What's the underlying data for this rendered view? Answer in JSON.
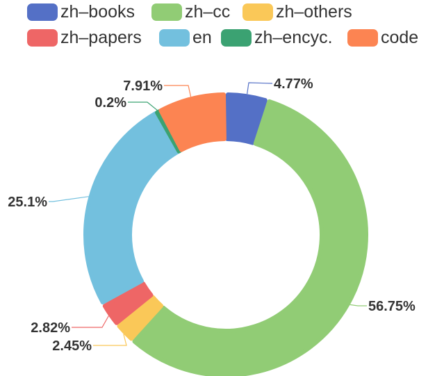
{
  "chart_data": {
    "type": "pie",
    "variant": "donut",
    "title": "",
    "legend_placement": "top",
    "categories": [
      "zh-books",
      "zh-cc",
      "zh-others",
      "zh-papers",
      "en",
      "zh-encyc.",
      "code"
    ],
    "legend_labels": [
      "zh–books",
      "zh–cc",
      "zh–others",
      "zh–papers",
      "en",
      "zh–encyc.",
      "code"
    ],
    "values": [
      4.77,
      56.75,
      2.45,
      2.82,
      25.1,
      0.2,
      7.91
    ],
    "data_labels": [
      "4.77%",
      "56.75%",
      "2.45%",
      "2.82%",
      "25.1%",
      "0.2%",
      "7.91%"
    ],
    "colors": [
      "#5470c6",
      "#91cc75",
      "#fac858",
      "#ee6666",
      "#73c0de",
      "#3ba272",
      "#fc8452"
    ]
  }
}
